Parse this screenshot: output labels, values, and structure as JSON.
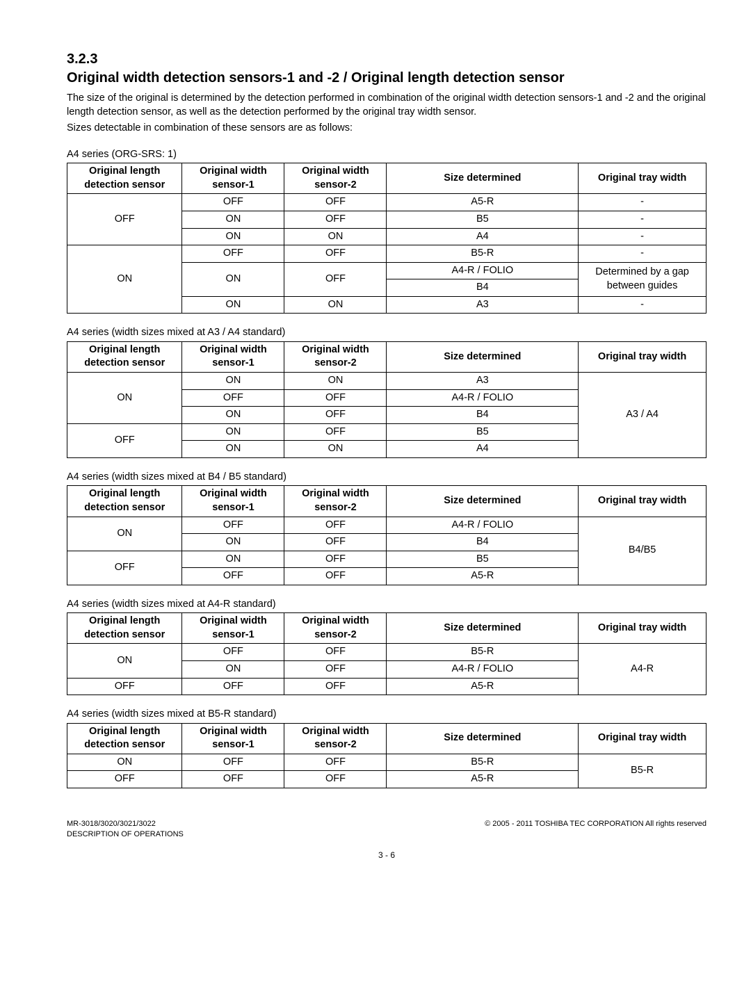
{
  "heading": {
    "number": "3.2.3",
    "title": "Original width detection sensors-1 and -2 / Original length detection sensor"
  },
  "paragraphs": {
    "p1": "The size of the original is determined by the detection performed in combination of the original width detection sensors-1 and -2 and the original length detection sensor, as well as the detection performed by the original tray width sensor.",
    "p2": "Sizes detectable in combination of these sensors are as follows:"
  },
  "columns": {
    "col1": "Original length detection sensor",
    "col2": "Original width sensor-1",
    "col3": "Original width sensor-2",
    "col4": "Size determined",
    "col5": "Original tray width"
  },
  "tables": {
    "t1": {
      "caption": "A4 series (ORG-SRS: 1)",
      "rows": {
        "r1": {
          "c1": "OFF",
          "c2": "OFF",
          "c3": "OFF",
          "c4": "A5-R",
          "c5": "-"
        },
        "r2": {
          "c2": "ON",
          "c3": "OFF",
          "c4": "B5",
          "c5": "-"
        },
        "r3": {
          "c2": "ON",
          "c3": "ON",
          "c4": "A4",
          "c5": "-"
        },
        "r4": {
          "c1": "ON",
          "c2": "OFF",
          "c3": "OFF",
          "c4": "B5-R",
          "c5": "-"
        },
        "r5": {
          "c2": "ON",
          "c3": "OFF",
          "c4": "A4-R / FOLIO",
          "c5": "Determined by a gap between guides"
        },
        "r6": {
          "c4": "B4"
        },
        "r7": {
          "c2": "ON",
          "c3": "ON",
          "c4": "A3",
          "c5": "-"
        }
      }
    },
    "t2": {
      "caption": "A4 series (width sizes mixed at A3 / A4 standard)",
      "rows": {
        "r1": {
          "c1": "ON",
          "c2": "ON",
          "c3": "ON",
          "c4": "A3",
          "c5": "A3 / A4"
        },
        "r2": {
          "c2": "OFF",
          "c3": "OFF",
          "c4": "A4-R / FOLIO"
        },
        "r3": {
          "c2": "ON",
          "c3": "OFF",
          "c4": "B4"
        },
        "r4": {
          "c1": "OFF",
          "c2": "ON",
          "c3": "OFF",
          "c4": "B5"
        },
        "r5": {
          "c2": "ON",
          "c3": "ON",
          "c4": "A4"
        }
      }
    },
    "t3": {
      "caption": "A4 series (width sizes mixed at B4 / B5 standard)",
      "rows": {
        "r1": {
          "c1": "ON",
          "c2": "OFF",
          "c3": "OFF",
          "c4": "A4-R / FOLIO",
          "c5": "B4/B5"
        },
        "r2": {
          "c2": "ON",
          "c3": "OFF",
          "c4": "B4"
        },
        "r3": {
          "c1": "OFF",
          "c2": "ON",
          "c3": "OFF",
          "c4": "B5"
        },
        "r4": {
          "c2": "OFF",
          "c3": "OFF",
          "c4": "A5-R"
        }
      }
    },
    "t4": {
      "caption": "A4 series (width sizes mixed at A4-R standard)",
      "rows": {
        "r1": {
          "c1": "ON",
          "c2": "OFF",
          "c3": "OFF",
          "c4": "B5-R",
          "c5": "A4-R"
        },
        "r2": {
          "c2": "ON",
          "c3": "OFF",
          "c4": "A4-R / FOLIO"
        },
        "r3": {
          "c1": "OFF",
          "c2": "OFF",
          "c3": "OFF",
          "c4": "A5-R"
        }
      }
    },
    "t5": {
      "caption": "A4 series (width sizes mixed at B5-R standard)",
      "rows": {
        "r1": {
          "c1": "ON",
          "c2": "OFF",
          "c3": "OFF",
          "c4": "B5-R",
          "c5": "B5-R"
        },
        "r2": {
          "c1": "OFF",
          "c2": "OFF",
          "c3": "OFF",
          "c4": "A5-R"
        }
      }
    }
  },
  "footer": {
    "left1": "MR-3018/3020/3021/3022",
    "left2": "DESCRIPTION OF OPERATIONS",
    "right": "© 2005 - 2011 TOSHIBA TEC CORPORATION All rights reserved",
    "page": "3 - 6"
  }
}
